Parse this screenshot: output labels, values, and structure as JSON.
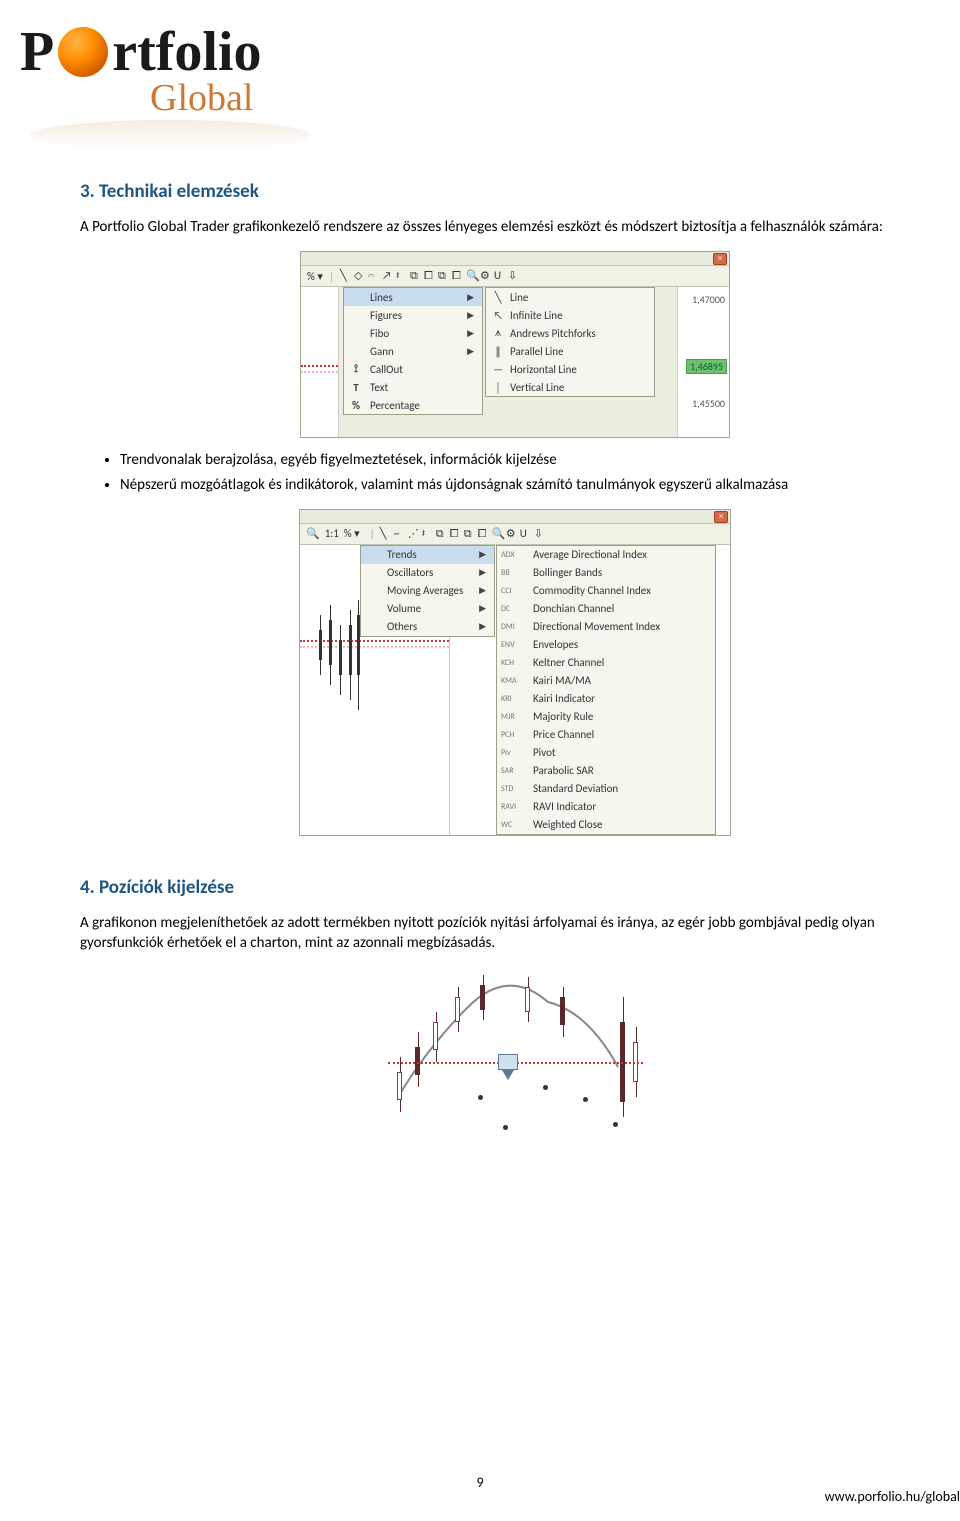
{
  "logo": {
    "brand_p": "P",
    "brand_rest": "rtfolio",
    "subbrand": "Global"
  },
  "section3": {
    "heading": "3. Technikai elemzések",
    "intro": "A Portfolio Global Trader grafikonkezelő rendszere az összes lényeges elemzési eszközt és módszert biztosítja a felhasználók számára:",
    "bullets": [
      "Trendvonalak berajzolása, egyéb figyelmeztetések, információk kijelzése",
      "Népszerű mozgóátlagok és indikátorok, valamint más újdonságnak számító tanulmányok egyszerű alkalmazása"
    ]
  },
  "fig1": {
    "toolbar_left": "% ▾",
    "toolbar_icons": [
      "╲",
      "◇",
      "𝄐",
      "↗",
      "𝄽",
      "⧉",
      "⧠",
      "⧉",
      "⧠",
      "🔍",
      "⚙",
      "U",
      "⇩"
    ],
    "menu_left": [
      {
        "icon": "",
        "label": "Lines",
        "arrow": true,
        "hl": true
      },
      {
        "icon": "",
        "label": "Figures",
        "arrow": true
      },
      {
        "icon": "",
        "label": "Fibo",
        "arrow": true
      },
      {
        "icon": "",
        "label": "Gann",
        "arrow": true
      },
      {
        "icon": "⟟",
        "label": "CallOut",
        "arrow": false
      },
      {
        "icon": "T",
        "label": "Text",
        "arrow": false
      },
      {
        "icon": "%",
        "label": "Percentage",
        "arrow": false
      }
    ],
    "menu_right": [
      {
        "icon": "╲",
        "label": "Line"
      },
      {
        "icon": "↖",
        "label": "Infinite Line"
      },
      {
        "icon": "⩚",
        "label": "Andrews Pitchforks"
      },
      {
        "icon": "∥",
        "label": "Parallel Line"
      },
      {
        "icon": "—",
        "label": "Horizontal Line"
      },
      {
        "icon": "│",
        "label": "Vertical Line"
      }
    ],
    "axis": {
      "top": "1,47000",
      "badge": "1,46895",
      "bottom": "1,45500"
    }
  },
  "fig2": {
    "toolbar_left": [
      "🔍",
      "1:1",
      "% ▾"
    ],
    "toolbar_icons": [
      "╲",
      "~",
      "⋰",
      "𝄽",
      "⧉",
      "⧠",
      "⧉",
      "⧠",
      "🔍",
      "⚙",
      "U",
      "⇩"
    ],
    "menu_left": [
      {
        "label": "Trends",
        "arrow": true,
        "hl": true
      },
      {
        "label": "Oscillators",
        "arrow": true
      },
      {
        "label": "Moving Averages",
        "arrow": true
      },
      {
        "label": "Volume",
        "arrow": true
      },
      {
        "label": "Others",
        "arrow": true
      }
    ],
    "menu_right": [
      {
        "code": "ADX",
        "label": "Average Directional Index"
      },
      {
        "code": "BB",
        "label": "Bollinger Bands"
      },
      {
        "code": "CCI",
        "label": "Commodity Channel Index"
      },
      {
        "code": "DC",
        "label": "Donchian Channel"
      },
      {
        "code": "DMI",
        "label": "Directional Movement Index"
      },
      {
        "code": "ENV",
        "label": "Envelopes"
      },
      {
        "code": "KCH",
        "label": "Keltner Channel"
      },
      {
        "code": "KMA",
        "label": "Kairi MA/MA"
      },
      {
        "code": "KRI",
        "label": "Kairi Indicator"
      },
      {
        "code": "MJR",
        "label": "Majority Rule"
      },
      {
        "code": "PCH",
        "label": "Price Channel"
      },
      {
        "code": "Piv",
        "label": "Pivot"
      },
      {
        "code": "SAR",
        "label": "Parabolic SAR"
      },
      {
        "code": "STD",
        "label": "Standard Deviation"
      },
      {
        "code": "RAVI",
        "label": "RAVI Indicator"
      },
      {
        "code": "WC",
        "label": "Weighted Close"
      }
    ]
  },
  "section4": {
    "heading": "4. Pozíciók kijelzése",
    "body": "A grafikonon megjeleníthetőek az adott termékben nyitott pozíciók nyitási árfolyamai és iránya, az egér jobb gombjával pedig olyan gyorsfunkciók érhetőek el a charton, mint az azonnali megbízásadás."
  },
  "footer": {
    "page": "9",
    "url": "www.porfolio.hu/global"
  },
  "colors": {
    "heading": "#1f5582",
    "menu_bg": "#f5f6ed",
    "menu_border": "#9aa088",
    "highlight": "#c9ddee",
    "dotted_red": "#cc3333",
    "badge_green": "#6fbf73",
    "globe1": "#ff8c00",
    "globe2": "#cc5500"
  }
}
